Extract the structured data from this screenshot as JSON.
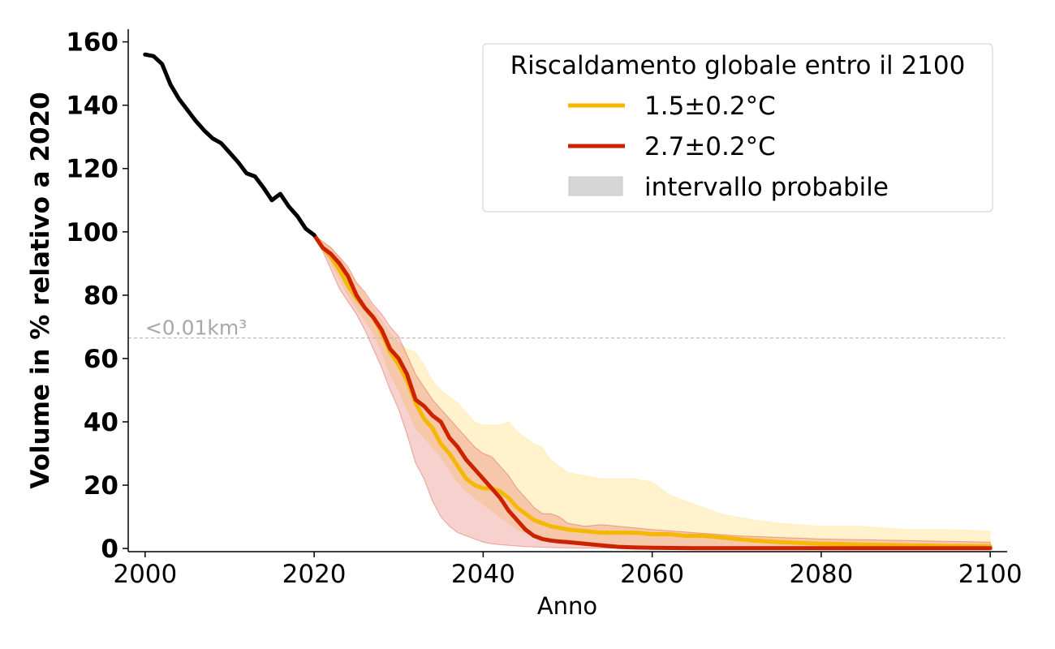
{
  "chart_data": {
    "type": "line",
    "xlabel": "Anno",
    "ylabel": "Volume in % relativo a 2020",
    "xlim": [
      1998,
      2102
    ],
    "ylim": [
      -1,
      164
    ],
    "xticks": [
      2000,
      2020,
      2040,
      2060,
      2080,
      2100
    ],
    "yticks": [
      0,
      20,
      40,
      60,
      80,
      100,
      120,
      140,
      160
    ],
    "grid": false,
    "legend_placement": "top-right",
    "legend_title": "Riscaldamento globale entro il 2100",
    "threshold": {
      "y": 66.5,
      "label": "<0.01km³",
      "color": "#bbbbbb"
    },
    "historical": {
      "color": "#000000",
      "x": [
        2000,
        2001,
        2002,
        2003,
        2004,
        2005,
        2006,
        2007,
        2008,
        2009,
        2010,
        2011,
        2012,
        2013,
        2014,
        2015,
        2016,
        2017,
        2018,
        2019,
        2020
      ],
      "y": [
        156,
        155.5,
        153,
        146.5,
        142,
        138.5,
        135,
        132,
        129.5,
        128,
        125,
        122,
        118.5,
        117.5,
        114,
        110,
        112,
        108,
        105,
        101,
        99
      ]
    },
    "series": [
      {
        "name": "1.5±0.2°C",
        "color": "#f5b800",
        "band_color": "#ffe8a3",
        "band_opacity": 0.55,
        "x": [
          2020,
          2021,
          2022,
          2023,
          2024,
          2025,
          2026,
          2027,
          2028,
          2029,
          2030,
          2031,
          2032,
          2033,
          2034,
          2035,
          2036,
          2037,
          2038,
          2039,
          2040,
          2041,
          2042,
          2043,
          2044,
          2045,
          2046,
          2047,
          2048,
          2049,
          2050,
          2052,
          2054,
          2056,
          2058,
          2060,
          2062,
          2064,
          2066,
          2068,
          2070,
          2072,
          2075,
          2080,
          2085,
          2090,
          2095,
          2100
        ],
        "y": [
          99,
          95,
          92,
          88,
          83,
          79,
          76,
          73,
          68,
          62,
          58,
          53,
          46,
          41,
          38,
          33,
          30,
          26,
          22,
          20,
          19,
          19,
          18,
          16,
          13,
          11,
          9,
          8,
          7,
          6.5,
          6,
          5.5,
          5,
          5,
          5,
          4.5,
          4.5,
          4,
          4,
          3.5,
          3,
          2.5,
          2,
          1.5,
          1.2,
          1,
          0.8,
          0.7
        ],
        "low": [
          99,
          95,
          90,
          85,
          80,
          76,
          72,
          68,
          62,
          55,
          50,
          44,
          38,
          35,
          32,
          29,
          25,
          21,
          18,
          16,
          14,
          12,
          10,
          8,
          6,
          5,
          4,
          3.5,
          3,
          2.5,
          2,
          1.5,
          1.2,
          1,
          0.9,
          0.8,
          0.7,
          0.6,
          0.5,
          0.5,
          0.4,
          0.4,
          0.3,
          0.3,
          0.2,
          0.2,
          0.2,
          0.2
        ],
        "high": [
          99,
          97,
          95,
          92,
          88,
          84,
          80,
          76,
          72,
          68,
          65,
          63,
          62,
          58,
          53,
          50,
          48,
          46,
          43,
          40,
          39,
          39,
          39,
          40,
          37,
          35,
          33,
          32,
          28,
          26,
          24,
          23,
          22,
          22,
          22,
          21,
          17,
          15,
          13,
          11,
          10,
          9,
          8,
          7,
          7,
          6,
          6,
          5.5
        ]
      },
      {
        "name": "2.7±0.2°C",
        "color": "#cc2200",
        "band_color": "#e05a4a",
        "band_opacity": 0.28,
        "x": [
          2020,
          2021,
          2022,
          2023,
          2024,
          2025,
          2026,
          2027,
          2028,
          2029,
          2030,
          2031,
          2032,
          2033,
          2034,
          2035,
          2036,
          2037,
          2038,
          2039,
          2040,
          2041,
          2042,
          2043,
          2044,
          2045,
          2046,
          2047,
          2048,
          2049,
          2050,
          2052,
          2054,
          2056,
          2058,
          2060,
          2065,
          2070,
          2080,
          2090,
          2100
        ],
        "y": [
          99,
          95,
          93,
          90,
          86,
          80,
          76,
          73,
          69,
          63,
          60,
          55,
          47,
          45,
          42,
          40,
          35,
          32,
          28,
          25,
          22,
          19,
          16,
          12,
          9,
          6,
          4,
          3,
          2.5,
          2.2,
          2,
          1.5,
          1,
          0.5,
          0.3,
          0.2,
          0.1,
          0.1,
          0.1,
          0.1,
          0.1
        ],
        "low": [
          99,
          94,
          88,
          82,
          78,
          74,
          69,
          63,
          57,
          50,
          44,
          36,
          27,
          22,
          15,
          10,
          7,
          5,
          4,
          3,
          2,
          1.5,
          1.2,
          1,
          0.8,
          0.6,
          0.5,
          0.4,
          0.3,
          0.2,
          0.2,
          0.1,
          0.1,
          0.1,
          0.1,
          0.1,
          0.1,
          0.1,
          0.1,
          0.1,
          0.1
        ],
        "high": [
          99,
          97,
          95,
          92,
          89,
          84,
          81,
          77,
          74,
          70,
          67,
          61,
          55,
          51,
          47,
          44,
          41,
          38,
          35,
          32,
          30,
          29,
          26,
          23,
          19,
          16,
          13,
          11,
          11,
          10,
          8,
          7,
          7.5,
          7,
          6.5,
          6,
          5,
          4,
          3,
          2.5,
          2
        ]
      }
    ],
    "legend": [
      {
        "label": "1.5±0.2°C",
        "kind": "line",
        "color": "#f5b800"
      },
      {
        "label": "2.7±0.2°C",
        "kind": "line",
        "color": "#cc2200"
      },
      {
        "label": "intervallo probabile",
        "kind": "patch",
        "color": "#d6d6d6"
      }
    ]
  }
}
